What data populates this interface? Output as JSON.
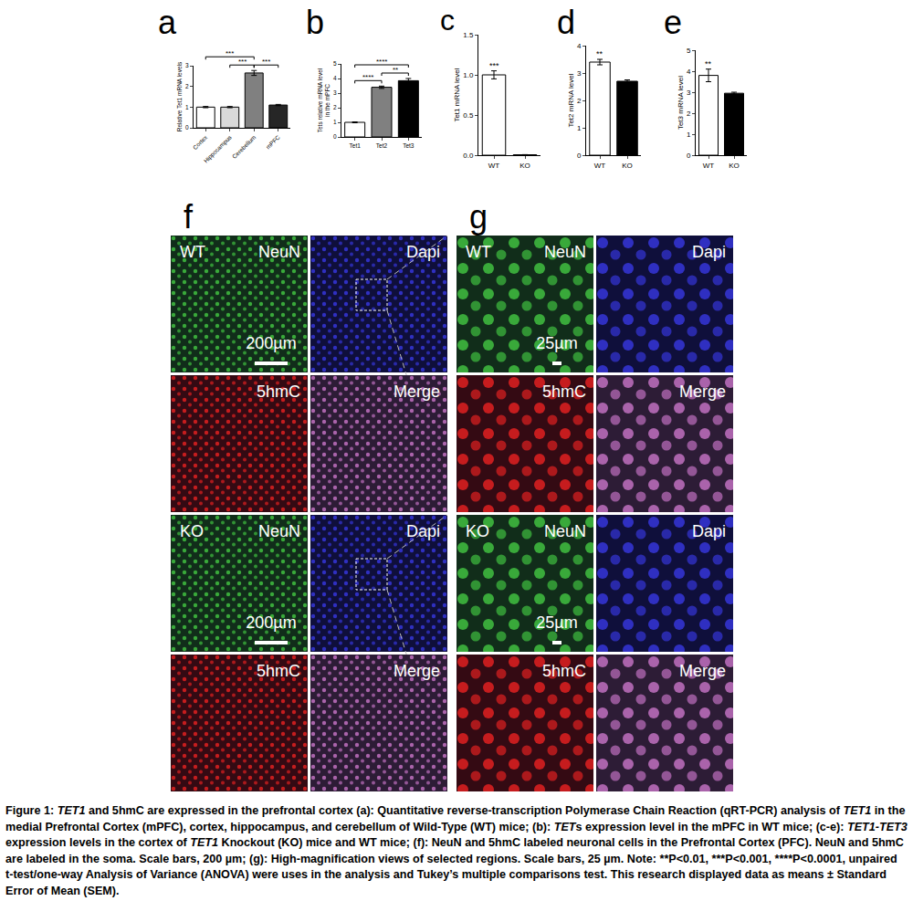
{
  "chart_data": [
    {
      "type": "bar",
      "panel": "a",
      "ylabel": "Relative Tet1 mRNA levels",
      "categories": [
        "Cortex",
        "Hippocampus",
        "Cerebellum",
        "mPFC"
      ],
      "values": [
        1.0,
        1.0,
        2.65,
        1.1
      ],
      "errors": [
        0.03,
        0.03,
        0.12,
        0.03
      ],
      "colors": [
        "#ffffff",
        "#d9d9d9",
        "#808080",
        "#262626"
      ],
      "ylim": [
        0,
        3
      ],
      "yticks": [
        0,
        1,
        2,
        3
      ],
      "grid": false,
      "significance": [
        {
          "from": "Cortex",
          "to": "Cerebellum",
          "label": "***"
        },
        {
          "from": "Hippocampus",
          "to": "Cerebellum",
          "label": "***"
        },
        {
          "from": "Cerebellum",
          "to": "mPFC",
          "label": "***"
        }
      ]
    },
    {
      "type": "bar",
      "panel": "b",
      "ylabel": [
        "Tets relative mRNA level",
        "in the mPFC"
      ],
      "categories": [
        "Tet1",
        "Tet2",
        "Tet3"
      ],
      "values": [
        1.0,
        3.4,
        3.85
      ],
      "errors": [
        0.03,
        0.08,
        0.15
      ],
      "colors": [
        "#ffffff",
        "#808080",
        "#000000"
      ],
      "ylim": [
        0,
        5
      ],
      "yticks": [
        0,
        1,
        2,
        3,
        4,
        5
      ],
      "grid": false,
      "significance": [
        {
          "from": "Tet1",
          "to": "Tet2",
          "label": "****"
        },
        {
          "from": "Tet1",
          "to": "Tet3",
          "label": "****"
        },
        {
          "from": "Tet2",
          "to": "Tet3",
          "label": "**"
        }
      ]
    },
    {
      "type": "bar",
      "panel": "c",
      "ylabel": "Tet1 mRNA level",
      "categories": [
        "WT",
        "KO"
      ],
      "values": [
        1.0,
        0.005
      ],
      "errors": [
        0.05,
        0.002
      ],
      "colors": [
        "#ffffff",
        "#000000"
      ],
      "ylim": [
        0,
        1.5
      ],
      "yticks": [
        {
          "value": 0,
          "label": "0.0"
        },
        {
          "value": 0.5,
          "label": "0.5"
        },
        {
          "value": 1,
          "label": "1.0"
        },
        {
          "value": 1.5,
          "label": "1.5"
        }
      ],
      "grid": false,
      "significance": [
        {
          "at": "WT",
          "label": "***"
        }
      ]
    },
    {
      "type": "bar",
      "panel": "d",
      "ylabel": "Tet2 mRNA level",
      "categories": [
        "WT",
        "KO"
      ],
      "values": [
        3.4,
        2.7
      ],
      "errors": [
        0.1,
        0.05
      ],
      "colors": [
        "#ffffff",
        "#000000"
      ],
      "ylim": [
        0,
        4
      ],
      "yticks": [
        0,
        1,
        2,
        3,
        4
      ],
      "grid": false,
      "significance": [
        {
          "at": "WT",
          "label": "**"
        }
      ]
    },
    {
      "type": "bar",
      "panel": "e",
      "ylabel": "Tet3 mRNA level",
      "categories": [
        "WT",
        "KO"
      ],
      "values": [
        3.8,
        2.95
      ],
      "errors": [
        0.3,
        0.05
      ],
      "colors": [
        "#ffffff",
        "#000000"
      ],
      "ylim": [
        0,
        5
      ],
      "yticks": [
        0,
        1,
        2,
        3,
        4,
        5
      ],
      "grid": false,
      "significance": [
        {
          "at": "WT",
          "label": "**"
        }
      ]
    }
  ],
  "image_panels": [
    {
      "panel": "f",
      "cells": [
        [
          {
            "group": "WT",
            "stain": "NeuN",
            "color": "#3fbf3f",
            "scale_bar": "200µm"
          },
          {
            "stain": "Dapi",
            "color": "#3535d8"
          }
        ],
        [
          {
            "stain": "5hmC",
            "color": "#e02020"
          },
          {
            "stain": "Merge",
            "color": "#c070c0"
          }
        ],
        [
          {
            "group": "KO",
            "stain": "NeuN",
            "color": "#3fbf3f",
            "scale_bar": "200µm"
          },
          {
            "stain": "Dapi",
            "color": "#3535d8"
          }
        ],
        [
          {
            "stain": "5hmC",
            "color": "#e02020"
          },
          {
            "stain": "Merge",
            "color": "#c070c0"
          }
        ]
      ]
    },
    {
      "panel": "g",
      "cells": [
        [
          {
            "group": "WT",
            "stain": "NeuN",
            "color": "#3fbf3f",
            "scale_bar": "25µm"
          },
          {
            "stain": "Dapi",
            "color": "#3535d8"
          }
        ],
        [
          {
            "stain": "5hmC",
            "color": "#e02020"
          },
          {
            "stain": "Merge",
            "color": "#c070c0"
          }
        ],
        [
          {
            "group": "KO",
            "stain": "NeuN",
            "color": "#3fbf3f",
            "scale_bar": "25µm"
          },
          {
            "stain": "Dapi",
            "color": "#3535d8"
          }
        ],
        [
          {
            "stain": "5hmC",
            "color": "#e02020"
          },
          {
            "stain": "Merge",
            "color": "#c070c0"
          }
        ]
      ]
    }
  ],
  "caption": [
    {
      "text": "Figure 1: "
    },
    {
      "text": "TET1",
      "italic": true
    },
    {
      "text": " and 5hmC are expressed in the prefrontal cortex (a): Quantitative reverse-transcription Polymerase Chain Reaction (qRT-PCR) analysis of "
    },
    {
      "text": "TET1",
      "italic": true
    },
    {
      "text": " in the medial Prefrontal Cortex (mPFC), cortex, hippocampus, and cerebellum of Wild-Type (WT) mice; (b): "
    },
    {
      "text": "TET",
      "italic": true
    },
    {
      "text": "s expression level in the mPFC in WT mice; (c-e): "
    },
    {
      "text": "TET1-TET3",
      "italic": true
    },
    {
      "text": " expression levels in the cortex of "
    },
    {
      "text": "TET1",
      "italic": true
    },
    {
      "text": " Knockout (KO) mice and WT mice; (f): NeuN and 5hmC labeled neuronal cells in the Prefrontal Cortex (PFC). NeuN and 5hmC are labeled in the soma. Scale bars, 200 µm; (g): High-magnification views of selected regions. Scale bars, 25 µm. Note: **P<0.01, ***P<0.001, ****P<0.0001, unpaired t-test/one-way Analysis of Variance (ANOVA) were uses in the analysis and Tukey’s multiple comparisons test. This research displayed data as means ± Standard Error of Mean (SEM)."
    }
  ]
}
